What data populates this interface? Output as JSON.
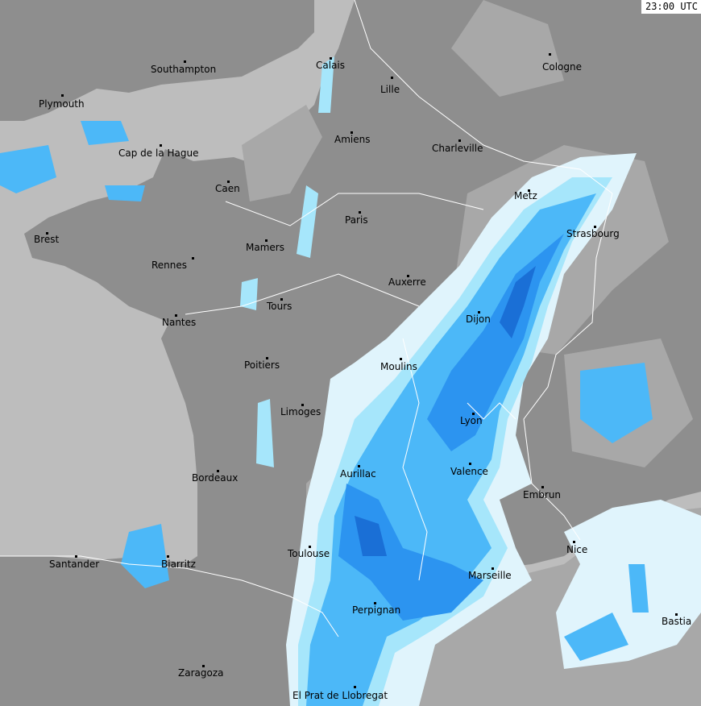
{
  "timestamp": "23:00 UTC",
  "colors": {
    "sea": "#bdbdbd",
    "land": "#8e8e8e",
    "land_cloud": "#a8a8a8",
    "precip_light": "#e0f4fc",
    "precip_low": "#a6e6fb",
    "precip_moderate": "#4cb8f8",
    "precip_heavy": "#2c94f0",
    "precip_very_heavy": "#1a6fd6",
    "borders": "#ffffff"
  },
  "cities": [
    {
      "name": "Southampton"
    },
    {
      "name": "Calais"
    },
    {
      "name": "Lille"
    },
    {
      "name": "Cologne"
    },
    {
      "name": "Plymouth"
    },
    {
      "name": "Amiens"
    },
    {
      "name": "Charleville"
    },
    {
      "name": "Cap de la Hague"
    },
    {
      "name": "Caen"
    },
    {
      "name": "Metz"
    },
    {
      "name": "Paris"
    },
    {
      "name": "Strasbourg"
    },
    {
      "name": "Brest"
    },
    {
      "name": "Mamers"
    },
    {
      "name": "Rennes"
    },
    {
      "name": "Auxerre"
    },
    {
      "name": "Tours"
    },
    {
      "name": "Dijon"
    },
    {
      "name": "Nantes"
    },
    {
      "name": "Moulins"
    },
    {
      "name": "Poitiers"
    },
    {
      "name": "Limoges"
    },
    {
      "name": "Lyon"
    },
    {
      "name": "Aurillac"
    },
    {
      "name": "Valence"
    },
    {
      "name": "Bordeaux"
    },
    {
      "name": "Embrun"
    },
    {
      "name": "Nice"
    },
    {
      "name": "Toulouse"
    },
    {
      "name": "Santander"
    },
    {
      "name": "Biarritz"
    },
    {
      "name": "Marseille"
    },
    {
      "name": "Perpignan"
    },
    {
      "name": "Bastia"
    },
    {
      "name": "Zaragoza"
    },
    {
      "name": "El Prat de Llobregat"
    }
  ]
}
